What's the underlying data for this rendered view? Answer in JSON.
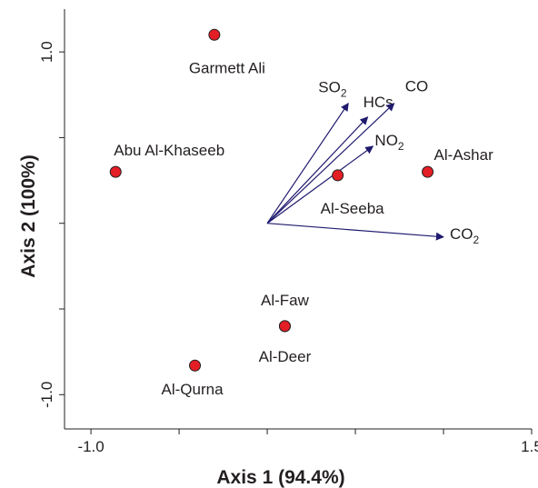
{
  "chart_data": {
    "type": "scatter",
    "xlabel": "Axis 1 (94.4%)",
    "ylabel": "Axis 2 (100%)",
    "xlim": [
      -1.15,
      1.5
    ],
    "ylim": [
      -1.2,
      1.25
    ],
    "x_ticks": [
      -1.0,
      -0.5,
      0.0,
      0.5,
      1.0,
      1.5
    ],
    "y_ticks": [
      -1.0,
      -0.5,
      0.0,
      0.5,
      1.0
    ],
    "x_tick_labels": [
      {
        "value": -1.0,
        "label": "-1.0"
      },
      {
        "value": 1.5,
        "label": "1.5"
      }
    ],
    "y_tick_labels": [
      {
        "value": -1.0,
        "label": "-1.0"
      },
      {
        "value": 1.0,
        "label": "1.0"
      }
    ],
    "point_color": "#e41e25",
    "arrow_color": "#1f1a6e",
    "points": [
      {
        "label": "Garmett Ali",
        "x": -0.3,
        "y": 1.1
      },
      {
        "label": "Abu Al-Khaseeb",
        "x": -0.86,
        "y": 0.3
      },
      {
        "label": "Al-Seeba",
        "x": 0.4,
        "y": 0.28
      },
      {
        "label": "Al-Ashar",
        "x": 0.91,
        "y": 0.3
      },
      {
        "label": "Al-Faw",
        "x": 0.1,
        "y": -0.6
      },
      {
        "label": "Al-Deer",
        "x": 0.1,
        "y": -0.6
      },
      {
        "label": "Al-Qurna",
        "x": -0.41,
        "y": -0.83
      }
    ],
    "vectors": [
      {
        "label": "SO",
        "sub": "2",
        "x0": 0.0,
        "y0": 0.0,
        "x1": 0.46,
        "y1": 0.7
      },
      {
        "label": "HCs",
        "sub": "",
        "x0": 0.0,
        "y0": 0.0,
        "x1": 0.57,
        "y1": 0.62
      },
      {
        "label": "CO",
        "sub": "",
        "x0": 0.0,
        "y0": 0.0,
        "x1": 0.72,
        "y1": 0.7
      },
      {
        "label": "NO",
        "sub": "2",
        "x0": 0.0,
        "y0": 0.0,
        "x1": 0.6,
        "y1": 0.45
      },
      {
        "label": "CO",
        "sub": "2",
        "x0": 0.0,
        "y0": 0.0,
        "x1": 1.0,
        "y1": -0.08
      }
    ]
  }
}
